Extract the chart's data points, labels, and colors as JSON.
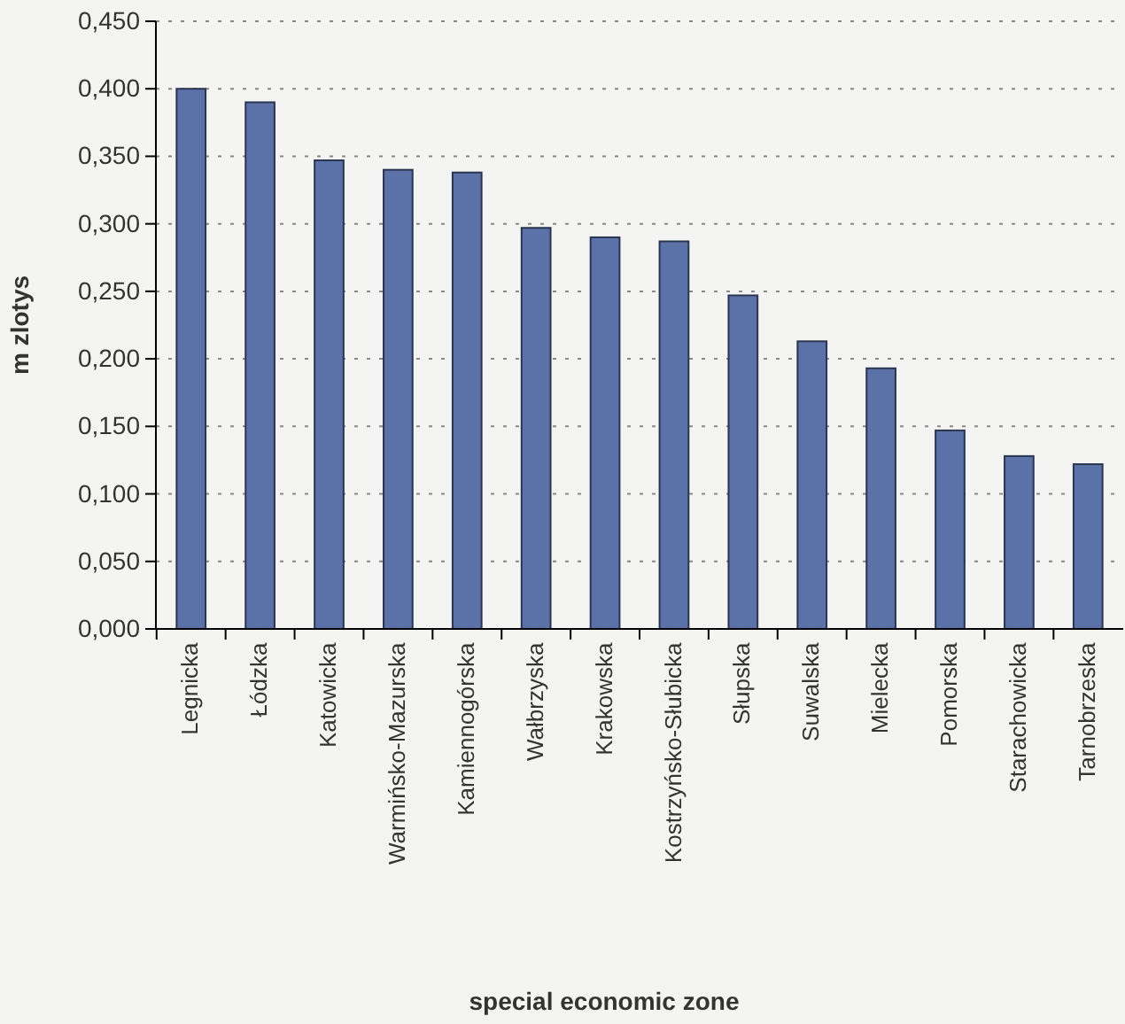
{
  "chart_data": {
    "type": "bar",
    "xlabel": "special economic zone",
    "ylabel": "m zlotys",
    "categories": [
      "Legnicka",
      "Łódzka",
      "Katowicka",
      "Warmińsko-Mazurska",
      "Kamiennogórska",
      "Wałbrzyska",
      "Krakowska",
      "Kostrzyńsko-Słubicka",
      "Słupska",
      "Suwalska",
      "Mielecka",
      "Pomorska",
      "Starachowicka",
      "Tarnobrzeska"
    ],
    "values": [
      0.4,
      0.39,
      0.347,
      0.34,
      0.338,
      0.297,
      0.29,
      0.287,
      0.247,
      0.213,
      0.193,
      0.147,
      0.128,
      0.122
    ],
    "color": "#5a72a8",
    "ylim": [
      0,
      0.45
    ],
    "yticks": [
      {
        "value": 0,
        "label": "0,000"
      },
      {
        "value": 0.05,
        "label": "0,050"
      },
      {
        "value": 0.1,
        "label": "0,100"
      },
      {
        "value": 0.15,
        "label": "0,150"
      },
      {
        "value": 0.2,
        "label": "0,200"
      },
      {
        "value": 0.25,
        "label": "0,250"
      },
      {
        "value": 0.3,
        "label": "0,300"
      },
      {
        "value": 0.35,
        "label": "0,350"
      },
      {
        "value": 0.4,
        "label": "0,400"
      },
      {
        "value": 0.45,
        "label": "0,450"
      }
    ],
    "grid": "y"
  }
}
